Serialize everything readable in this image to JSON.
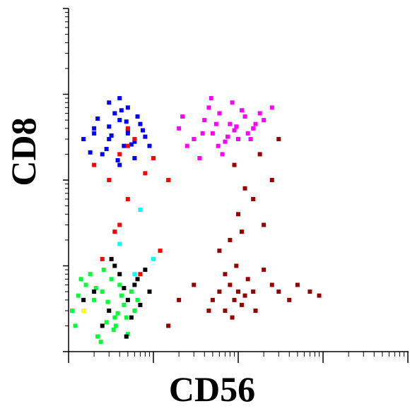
{
  "chart_data": {
    "type": "scatter",
    "xlabel": "CD56",
    "ylabel": "CD8",
    "xscale": "log",
    "yscale": "log",
    "xlim": [
      1,
      10000
    ],
    "ylim": [
      1,
      10000
    ],
    "xticks": [
      1,
      2,
      3,
      4,
      5,
      6,
      7,
      8,
      9,
      10,
      20,
      30,
      40,
      50,
      60,
      70,
      80,
      90,
      100,
      200,
      300,
      400,
      500,
      600,
      700,
      800,
      900,
      1000,
      2000,
      3000,
      4000,
      5000,
      6000,
      7000,
      8000,
      9000,
      10000
    ],
    "yticks": [
      1,
      2,
      3,
      4,
      5,
      6,
      7,
      8,
      9,
      10,
      20,
      30,
      40,
      50,
      60,
      70,
      80,
      90,
      100,
      200,
      300,
      400,
      500,
      600,
      700,
      800,
      900,
      1000,
      2000,
      3000,
      4000,
      5000,
      6000,
      7000,
      8000,
      9000,
      10000
    ],
    "series": [
      {
        "color": "#00ff33",
        "x": [
          1.2,
          1.5,
          2,
          2.5,
          3,
          3.5,
          4,
          5,
          6,
          1.8,
          2.2,
          2.8,
          3.2,
          4.5,
          5.5,
          1.3,
          2.4,
          3.8,
          1.6,
          2.6,
          3.4,
          4.2,
          1.1,
          2.1,
          3.6,
          5,
          1.4,
          2.9,
          4.8,
          6.5
        ],
        "y": [
          2,
          3,
          4,
          5,
          3,
          2.5,
          6,
          4,
          3,
          8,
          1.5,
          2.2,
          7,
          3.5,
          5,
          4.5,
          1.3,
          2.8,
          6,
          9,
          1.8,
          4.5,
          3,
          5.5,
          2,
          1.6,
          7,
          3.8,
          2.5,
          4
        ]
      },
      {
        "color": "#000000",
        "x": [
          2,
          3,
          4,
          5,
          6,
          7,
          8,
          2.5,
          3.5,
          4.5,
          5.5,
          6.5,
          1.5,
          9,
          3.2,
          4.8
        ],
        "y": [
          5,
          3,
          8,
          4,
          6,
          3.5,
          9,
          2,
          10,
          5.5,
          2.5,
          7,
          4,
          5,
          12,
          1.5
        ]
      },
      {
        "color": "#0000ff",
        "x": [
          2,
          3,
          4,
          5,
          6,
          3.5,
          2.5,
          4.5,
          7,
          8,
          3,
          5,
          2,
          6,
          4,
          1.5,
          9,
          3,
          5,
          4,
          2.8,
          6.5,
          3.2,
          4.8,
          5.5,
          2.2,
          7.5,
          3.8,
          4.2,
          1.8
        ],
        "y": [
          400,
          300,
          500,
          350,
          280,
          600,
          200,
          250,
          450,
          320,
          800,
          700,
          350,
          180,
          150,
          300,
          250,
          420,
          380,
          900,
          230,
          550,
          330,
          480,
          260,
          520,
          380,
          170,
          650,
          210
        ]
      },
      {
        "color": "#ff0000",
        "x": [
          2,
          3,
          4,
          5,
          6,
          8,
          4,
          5,
          3.5,
          10,
          2.5,
          15,
          7,
          12,
          5
        ],
        "y": [
          150,
          100,
          200,
          60,
          300,
          120,
          30,
          400,
          25,
          180,
          12,
          100,
          8,
          15,
          250
        ]
      },
      {
        "color": "#ff00ff",
        "x": [
          20,
          30,
          40,
          50,
          60,
          80,
          100,
          120,
          150,
          200,
          25,
          45,
          70,
          90,
          110,
          35,
          55,
          75,
          130,
          180,
          22,
          65,
          85,
          140,
          48,
          95,
          38,
          160,
          58,
          250
        ],
        "y": [
          400,
          300,
          500,
          350,
          600,
          450,
          300,
          550,
          400,
          500,
          250,
          700,
          280,
          380,
          650,
          180,
          450,
          320,
          350,
          600,
          550,
          200,
          800,
          300,
          900,
          420,
          350,
          450,
          250,
          700
        ]
      },
      {
        "color": "#990000",
        "x": [
          50,
          60,
          70,
          80,
          90,
          100,
          110,
          120,
          150,
          70,
          85,
          95,
          130,
          45,
          30,
          20,
          15,
          160,
          200,
          250,
          300,
          400,
          500,
          700,
          900,
          80,
          100,
          150,
          200,
          120,
          90,
          180,
          250,
          300,
          60,
          110
        ],
        "y": [
          4,
          5,
          3,
          6,
          4,
          5,
          3.5,
          4.5,
          5,
          8,
          2.5,
          10,
          7,
          3,
          6,
          4,
          2,
          3,
          9,
          6,
          5,
          4,
          6,
          5,
          4.5,
          20,
          40,
          60,
          30,
          80,
          150,
          200,
          100,
          300,
          15,
          25
        ]
      },
      {
        "color": "#00ffff",
        "x": [
          7,
          10,
          6,
          4
        ],
        "y": [
          45,
          12,
          8,
          18
        ]
      },
      {
        "color": "#ffff00",
        "x": [
          1.5
        ],
        "y": [
          3
        ]
      }
    ]
  }
}
